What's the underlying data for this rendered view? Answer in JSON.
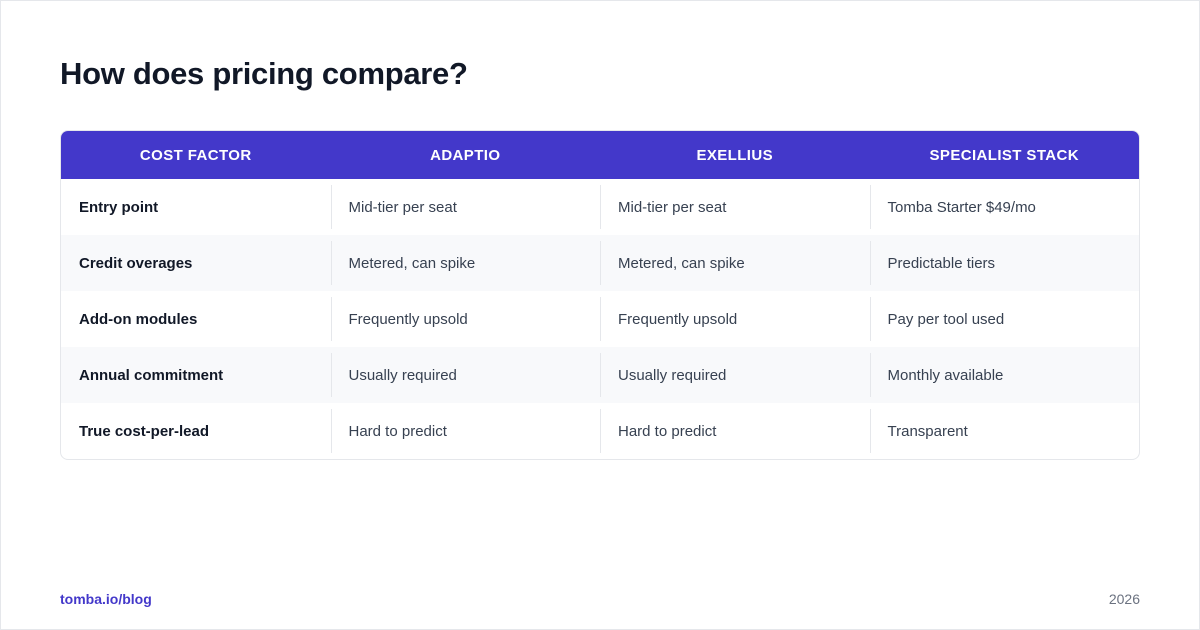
{
  "title": "How does pricing compare?",
  "colors": {
    "header_bg": "#4338ca",
    "accent": "#4338ca",
    "row_alt_bg": "#f8f9fb"
  },
  "table": {
    "headers": [
      "COST FACTOR",
      "ADAPTIO",
      "EXELLIUS",
      "SPECIALIST STACK"
    ],
    "rows": [
      [
        "Entry point",
        "Mid-tier per seat",
        "Mid-tier per seat",
        "Tomba Starter $49/mo"
      ],
      [
        "Credit overages",
        "Metered, can spike",
        "Metered, can spike",
        "Predictable tiers"
      ],
      [
        "Add-on modules",
        "Frequently upsold",
        "Frequently upsold",
        "Pay per tool used"
      ],
      [
        "Annual commitment",
        "Usually required",
        "Usually required",
        "Monthly available"
      ],
      [
        "True cost-per-lead",
        "Hard to predict",
        "Hard to predict",
        "Transparent"
      ]
    ]
  },
  "footer": {
    "link": "tomba.io/blog",
    "year": "2026"
  }
}
